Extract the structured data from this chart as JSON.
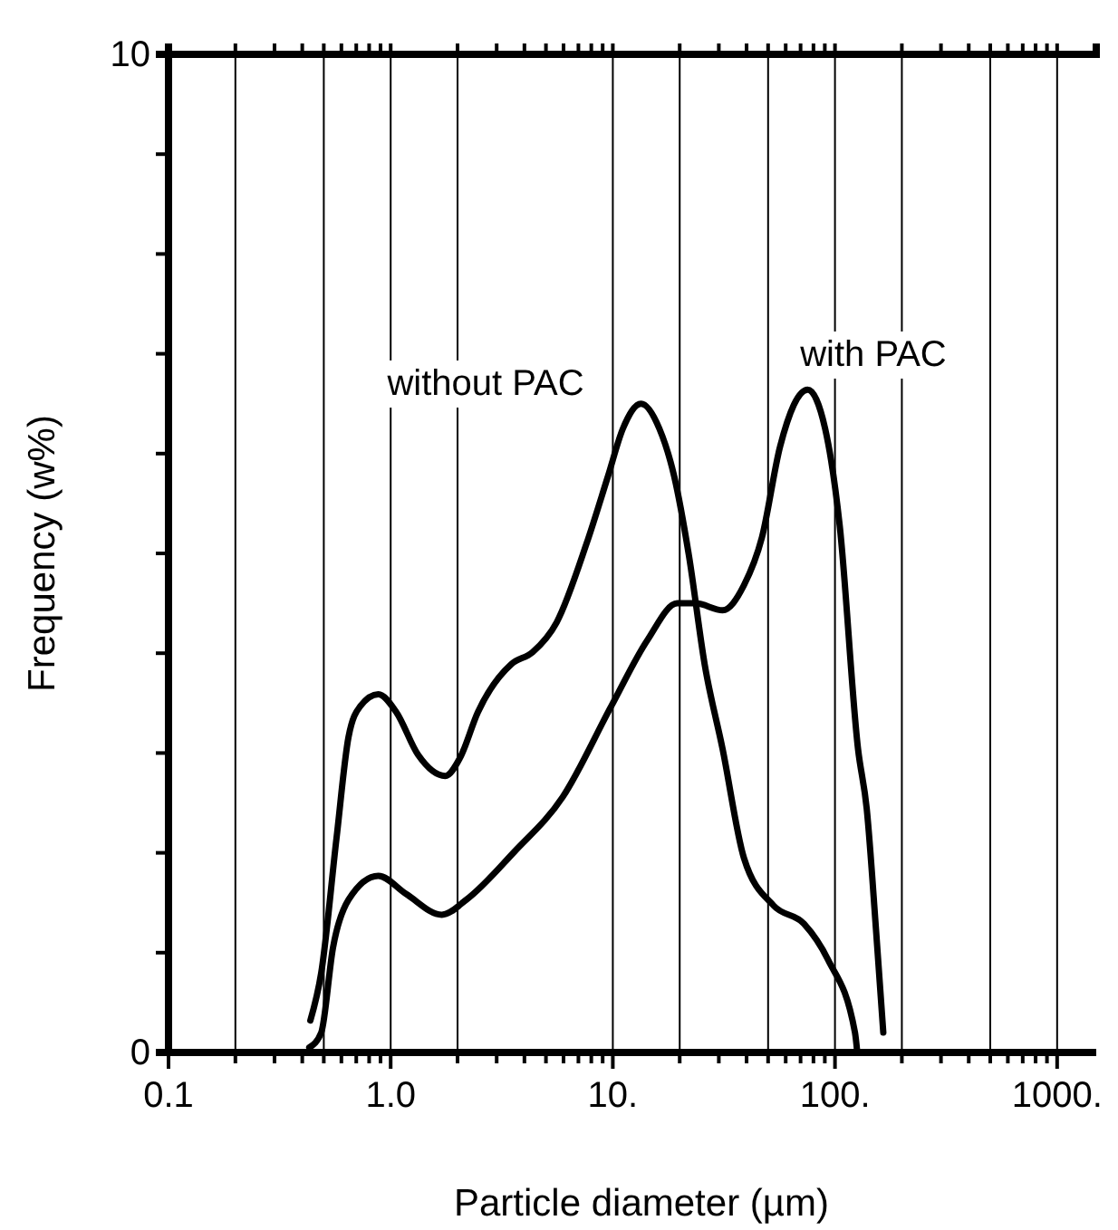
{
  "chart_data": {
    "type": "line",
    "xlabel": "Particle diameter (µm)",
    "ylabel": "Frequency (w%)",
    "log": "x",
    "xlim": [
      0.1,
      1500
    ],
    "ylim": [
      0,
      10
    ],
    "xticks": [
      0.1,
      {
        "value": 0.2,
        "label": null
      },
      {
        "value": 0.3,
        "label": null
      },
      {
        "value": 0.4,
        "label": null
      },
      {
        "value": 0.5,
        "label": null
      },
      {
        "value": 0.6,
        "label": null
      },
      {
        "value": 0.7,
        "label": null
      },
      {
        "value": 0.8,
        "label": null
      },
      {
        "value": 0.9,
        "label": null
      },
      {
        "value": 1,
        "label": "1.0"
      },
      {
        "value": 2,
        "label": null
      },
      {
        "value": 3,
        "label": null
      },
      {
        "value": 4,
        "label": null
      },
      {
        "value": 5,
        "label": null
      },
      {
        "value": 6,
        "label": null
      },
      {
        "value": 7,
        "label": null
      },
      {
        "value": 8,
        "label": null
      },
      {
        "value": 9,
        "label": null
      },
      {
        "value": 10,
        "label": "10."
      },
      {
        "value": 20,
        "label": null
      },
      {
        "value": 30,
        "label": null
      },
      {
        "value": 40,
        "label": null
      },
      {
        "value": 50,
        "label": null
      },
      {
        "value": 60,
        "label": null
      },
      {
        "value": 70,
        "label": null
      },
      {
        "value": 80,
        "label": null
      },
      {
        "value": 90,
        "label": null
      },
      {
        "value": 100,
        "label": "100."
      },
      {
        "value": 200,
        "label": null
      },
      {
        "value": 300,
        "label": null
      },
      {
        "value": 400,
        "label": null
      },
      {
        "value": 500,
        "label": null
      },
      {
        "value": 600,
        "label": null
      },
      {
        "value": 700,
        "label": null
      },
      {
        "value": 800,
        "label": null
      },
      {
        "value": 900,
        "label": null
      },
      {
        "value": 1000,
        "label": "1000."
      }
    ],
    "yticks": [
      0,
      {
        "value": 1,
        "label": null
      },
      {
        "value": 2,
        "label": null
      },
      {
        "value": 3,
        "label": null
      },
      {
        "value": 4,
        "label": null
      },
      {
        "value": 5,
        "label": null
      },
      {
        "value": 6,
        "label": null
      },
      {
        "value": 7,
        "label": null
      },
      {
        "value": 8,
        "label": null
      },
      {
        "value": 9,
        "label": null
      },
      10
    ],
    "grid": false,
    "legend": false,
    "marker": "none",
    "line_style": "solid",
    "ref_lines": [
      {
        "axis": "x",
        "value": 0.2,
        "color": "#000000"
      },
      {
        "axis": "x",
        "value": 0.5,
        "color": "#000000"
      },
      {
        "axis": "x",
        "value": 1,
        "color": "#000000"
      },
      {
        "axis": "x",
        "value": 2,
        "color": "#000000"
      },
      {
        "axis": "x",
        "value": 10,
        "color": "#000000"
      },
      {
        "axis": "x",
        "value": 20,
        "color": "#000000"
      },
      {
        "axis": "x",
        "value": 50,
        "color": "#000000"
      },
      {
        "axis": "x",
        "value": 100,
        "color": "#000000"
      },
      {
        "axis": "x",
        "value": 200,
        "color": "#000000"
      },
      {
        "axis": "x",
        "value": 500,
        "color": "#000000"
      },
      {
        "axis": "x",
        "value": 1000,
        "color": "#000000"
      }
    ],
    "series": [
      {
        "name": "without PAC",
        "color": "#000000",
        "x": [
          0.435,
          0.487,
          0.57,
          0.646,
          0.73,
          0.88,
          1.06,
          1.33,
          1.76,
          2.05,
          2.47,
          3.49,
          4.35,
          5.59,
          7.62,
          9.5,
          11.1,
          13.4,
          16.2,
          18.9,
          22,
          25.9,
          31.2,
          38.9,
          53,
          72.5,
          93,
          123,
          126
        ],
        "values": [
          0.32,
          0.8,
          2.14,
          3.16,
          3.47,
          3.59,
          3.41,
          2.98,
          2.77,
          2.95,
          3.41,
          3.89,
          4.01,
          4.31,
          5.1,
          5.77,
          6.25,
          6.5,
          6.25,
          5.77,
          4.98,
          3.89,
          3.04,
          1.95,
          1.47,
          1.29,
          0.93,
          0.2,
          0
        ]
      },
      {
        "name": "with PAC",
        "color": "#000000",
        "x": [
          0.43,
          0.487,
          0.55,
          0.646,
          0.88,
          1.17,
          1.7,
          2.19,
          3.6,
          5.95,
          9.84,
          14.3,
          19.5,
          23.6,
          31.2,
          38.9,
          46.9,
          56.6,
          75.3,
          90.3,
          105,
          127,
          139,
          153,
          165
        ],
        "values": [
          0.05,
          0.2,
          1.05,
          1.53,
          1.77,
          1.59,
          1.38,
          1.53,
          2.01,
          2.56,
          3.47,
          4.13,
          4.5,
          4.5,
          4.43,
          4.68,
          5.16,
          6.07,
          6.64,
          6.25,
          5.28,
          3.04,
          2.44,
          1.23,
          0.2
        ]
      }
    ]
  }
}
